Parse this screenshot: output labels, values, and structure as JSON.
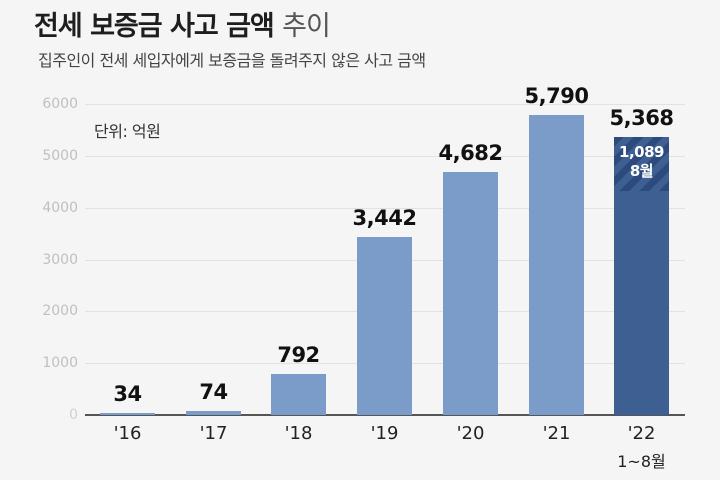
{
  "header": {
    "title_bold": "전세 보증금 사고 금액",
    "title_light": "추이",
    "subtitle": "집주인이 전세 세입자에게 보증금을 돌려주지 않은 사고 금액"
  },
  "unit_label": "단위: 억원",
  "chart_data": {
    "type": "bar",
    "title": "전세 보증금 사고 금액 추이",
    "subtitle": "집주인이 전세 세입자에게 보증금을 돌려주지 않은 사고 금액",
    "unit": "억원",
    "categories": [
      "'16",
      "'17",
      "'18",
      "'19",
      "'20",
      "'21",
      "'22"
    ],
    "category_sublabels": [
      "",
      "",
      "",
      "",
      "",
      "",
      "1~8월"
    ],
    "values": [
      34,
      74,
      792,
      3442,
      4682,
      5790,
      5368
    ],
    "value_labels": [
      "34",
      "74",
      "792",
      "3,442",
      "4,682",
      "5,790",
      "5,368"
    ],
    "annotation": {
      "category": "'22",
      "value": 1089,
      "value_label": "1,089",
      "label": "8월",
      "note": "hatched segment at top of 2022 bar"
    },
    "yticks": [
      "6000",
      "5000",
      "4000",
      "3000",
      "2000",
      "1000",
      "0"
    ],
    "ylim": [
      0,
      6000
    ],
    "grid": true,
    "colors": {
      "bar": "#7b9bc9",
      "highlight_bar": "#3d5f92",
      "hatch": "#2d4a7c"
    }
  }
}
